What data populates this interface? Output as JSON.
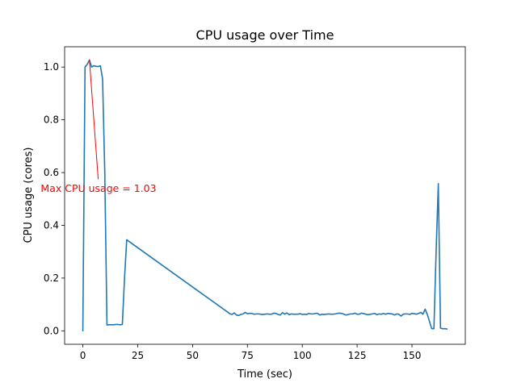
{
  "chart_data": {
    "type": "line",
    "title": "CPU usage over Time",
    "xlabel": "Time (sec)",
    "ylabel": "CPU usage (cores)",
    "xlim": [
      -8.3,
      174.3
    ],
    "ylim": [
      -0.051,
      1.077
    ],
    "xticks": [
      0,
      25,
      50,
      75,
      100,
      125,
      150
    ],
    "xtick_labels": [
      "0",
      "25",
      "50",
      "75",
      "100",
      "125",
      "150"
    ],
    "yticks": [
      0.0,
      0.2,
      0.4,
      0.6,
      0.8,
      1.0
    ],
    "ytick_labels": [
      "0.0",
      "0.2",
      "0.4",
      "0.6",
      "0.8",
      "1.0"
    ],
    "grid": false,
    "line_color": "#1f77b4",
    "annotation": {
      "text": "Max CPU usage = 1.03",
      "color": "#ff0000",
      "xy": [
        3,
        1.027
      ],
      "text_xy": [
        7,
        0.575
      ]
    },
    "series": [
      {
        "x": [
          0,
          1,
          2,
          3,
          4,
          5,
          6,
          7,
          8,
          9,
          10,
          11,
          12,
          13,
          14,
          15,
          16,
          17,
          18,
          19,
          20,
          67,
          68,
          69,
          70,
          71,
          72,
          73,
          74,
          75,
          76,
          77,
          78,
          79,
          80,
          81,
          82,
          83,
          84,
          85,
          86,
          87,
          88,
          89,
          90,
          91,
          92,
          93,
          94,
          95,
          96,
          97,
          98,
          99,
          100,
          101,
          102,
          103,
          104,
          105,
          106,
          107,
          108,
          109,
          110,
          111,
          112,
          113,
          114,
          115,
          116,
          117,
          118,
          119,
          120,
          121,
          122,
          123,
          124,
          125,
          126,
          127,
          128,
          129,
          130,
          131,
          132,
          133,
          134,
          135,
          136,
          137,
          138,
          139,
          140,
          141,
          142,
          143,
          144,
          145,
          146,
          147,
          148,
          149,
          150,
          151,
          152,
          153,
          154,
          155,
          156,
          157,
          158,
          159,
          160,
          161,
          162,
          163,
          164,
          165,
          166
        ],
        "y": [
          0.0,
          1.0,
          1.01,
          1.027,
          1.0,
          1.005,
          1.003,
          1.002,
          1.005,
          0.955,
          0.6,
          0.022,
          0.023,
          0.023,
          0.023,
          0.024,
          0.024,
          0.023,
          0.024,
          0.2,
          0.345,
          0.065,
          0.062,
          0.068,
          0.06,
          0.058,
          0.062,
          0.064,
          0.07,
          0.065,
          0.066,
          0.066,
          0.063,
          0.064,
          0.064,
          0.063,
          0.062,
          0.063,
          0.064,
          0.063,
          0.063,
          0.067,
          0.066,
          0.062,
          0.06,
          0.069,
          0.063,
          0.068,
          0.061,
          0.064,
          0.063,
          0.063,
          0.063,
          0.065,
          0.062,
          0.063,
          0.062,
          0.066,
          0.064,
          0.064,
          0.066,
          0.066,
          0.06,
          0.063,
          0.062,
          0.063,
          0.064,
          0.063,
          0.063,
          0.064,
          0.066,
          0.067,
          0.066,
          0.063,
          0.06,
          0.062,
          0.064,
          0.064,
          0.067,
          0.063,
          0.063,
          0.067,
          0.065,
          0.063,
          0.061,
          0.063,
          0.064,
          0.066,
          0.061,
          0.064,
          0.063,
          0.066,
          0.063,
          0.066,
          0.065,
          0.064,
          0.06,
          0.064,
          0.063,
          0.056,
          0.063,
          0.064,
          0.064,
          0.062,
          0.066,
          0.065,
          0.063,
          0.066,
          0.07,
          0.063,
          0.082,
          0.062,
          0.035,
          0.008,
          0.008,
          0.3,
          0.558,
          0.01,
          0.008,
          0.008,
          0.007
        ]
      }
    ]
  }
}
